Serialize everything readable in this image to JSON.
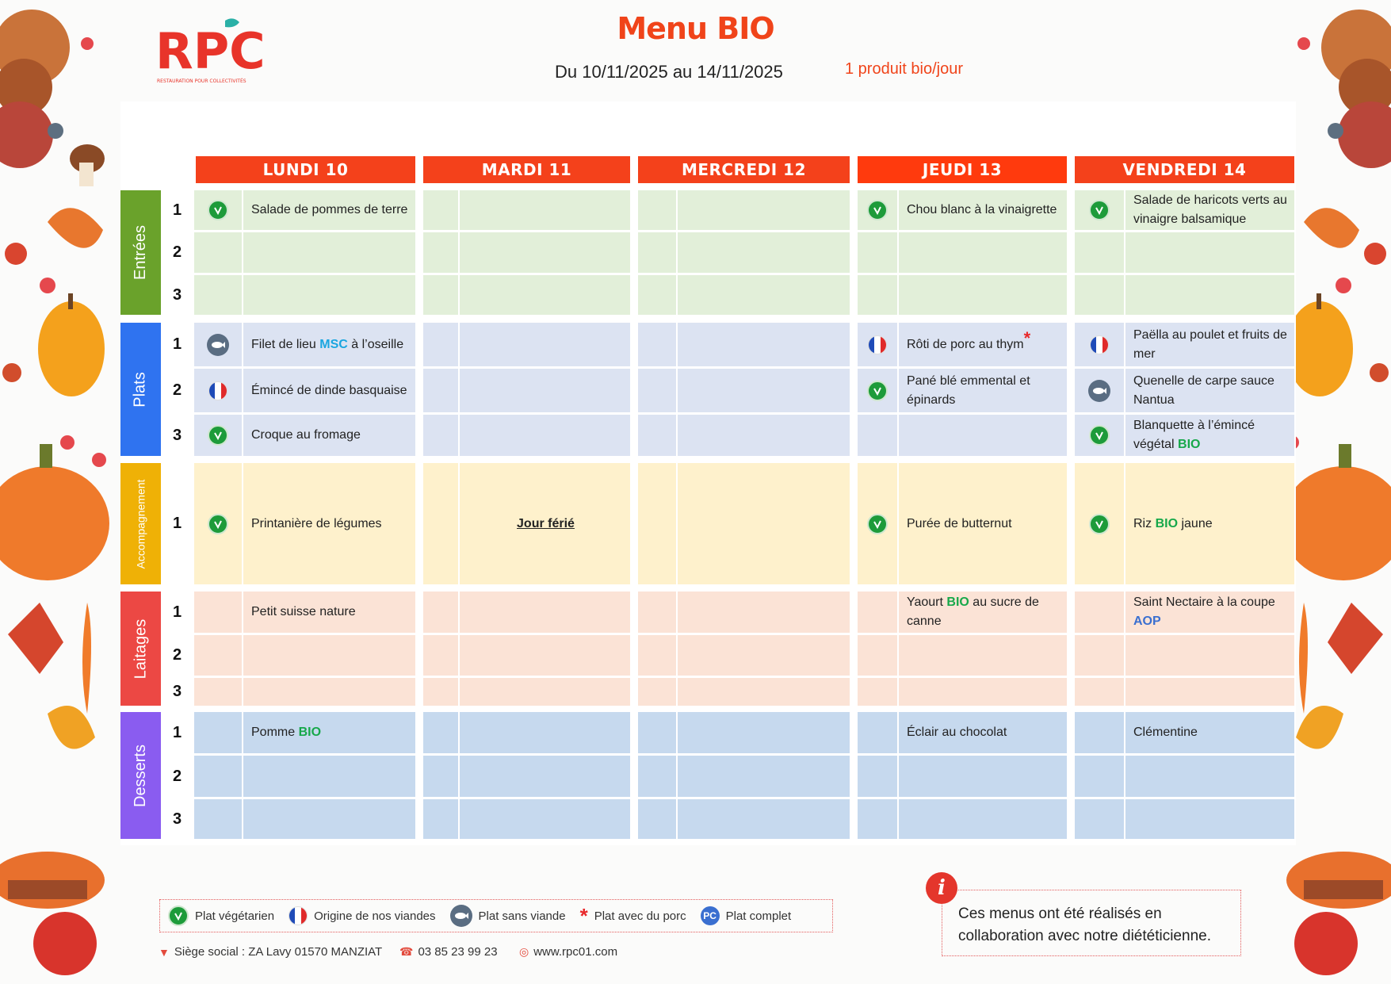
{
  "header": {
    "logo_text": "RPC",
    "logo_subtitle": "RESTAURATION POUR COLLECTIVITÉS",
    "title": "Menu BIO",
    "dates": "Du 10/11/2025 au 14/11/2025",
    "bio_note": "1 produit bio/jour"
  },
  "days": [
    "LUNDI 10",
    "MARDI 11",
    "MERCREDI 12",
    "JEUDI 13",
    "VENDREDI 14"
  ],
  "sections": [
    {
      "label": "Entrées",
      "color": "#6aa22b",
      "bg": "#e2efd9",
      "rows": [
        "1",
        "2",
        "3"
      ]
    },
    {
      "label": "Plats",
      "color": "#2f73f0",
      "bg": "#dce3f2",
      "rows": [
        "1",
        "2",
        "3"
      ]
    },
    {
      "label": "Accompagnement",
      "color": "#efb106",
      "bg": "#fef1cc",
      "rows": [
        "1"
      ]
    },
    {
      "label": "Laitages",
      "color": "#ec4844",
      "bg": "#fbe3d6",
      "rows": [
        "1",
        "2",
        "3"
      ]
    },
    {
      "label": "Desserts",
      "color": "#8a5cf0",
      "bg": "#c6d9ee",
      "rows": [
        "1",
        "2",
        "3"
      ]
    }
  ],
  "menu": {
    "lundi": {
      "entree1": "Salade de pommes de terre",
      "plat1_pre": "Filet de lieu ",
      "plat1_msc": "MSC",
      "plat1_post": " à l’oseille",
      "plat2": "Émincé de dinde basquaise",
      "plat3": "Croque au fromage",
      "accomp1": "Printanière de légumes",
      "laitage1": "Petit suisse nature",
      "dessert1_pre": "Pomme ",
      "dessert1_bio": "BIO"
    },
    "mardi": {
      "holiday": "Jour férié"
    },
    "jeudi": {
      "entree1": "Chou blanc à la vinaigrette",
      "plat1": "Rôti de porc au thym",
      "plat1_star": "*",
      "plat2": "Pané blé emmental et épinards",
      "accomp1": "Purée de butternut",
      "laitage1_pre": "Yaourt ",
      "laitage1_bio": "BIO",
      "laitage1_post": " au sucre de canne",
      "dessert1": "Éclair au chocolat"
    },
    "vendredi": {
      "entree1": "Salade de haricots verts au vinaigre balsamique",
      "plat1": "Paëlla au poulet et fruits de mer",
      "plat2": "Quenelle de carpe sauce Nantua",
      "plat3_pre": "Blanquette à l’émincé végétal ",
      "plat3_bio": "BIO",
      "accomp1_pre": "Riz ",
      "accomp1_bio": "BIO",
      "accomp1_post": " jaune",
      "laitage1_pre": "Saint Nectaire à la coupe ",
      "laitage1_aop": "AOP",
      "dessert1": "Clémentine"
    }
  },
  "legend": {
    "veg": "Plat végétarien",
    "origin": "Origine de nos viandes",
    "no_meat": "Plat sans viande",
    "pork_symbol": "*",
    "pork": "Plat avec du porc",
    "pc_symbol": "PC",
    "complete": "Plat complet"
  },
  "footer": {
    "address": "Siège social : ZA Lavy 01570 MANZIAT",
    "phone": "03 85 23 99 23",
    "website": "www.rpc01.com"
  },
  "info": {
    "icon_letter": "i",
    "text": "Ces menus ont été réalisés en collaboration avec notre diététicienne."
  },
  "colors": {
    "accent": "#f0441a",
    "vegetarian": "#1d9b3a",
    "bio": "#17a84a",
    "msc": "#1aa6e0"
  }
}
